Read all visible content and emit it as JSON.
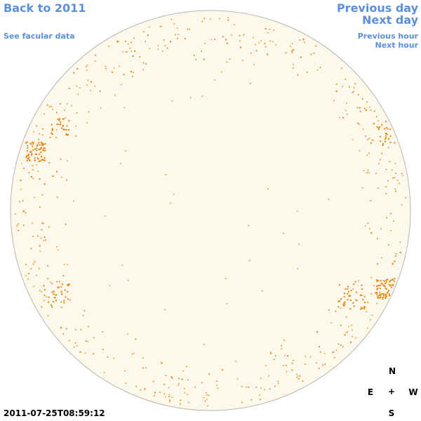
{
  "nav": {
    "back_year": "Back to 2011",
    "facular_data": "See facular data",
    "previous_day": "Previous day",
    "next_day": "Next day",
    "previous_hour": "Previous hour",
    "next_hour": "Next hour"
  },
  "compass": {
    "north": "N",
    "east": "E",
    "center": "+",
    "west": "W",
    "south": "S"
  },
  "timestamp": "2011-07-25T08:59:12",
  "colors": {
    "disk_fill": "#fdf8ec",
    "disk_edge": "#b9b5aa",
    "facula": "#e8820c",
    "link": "#5b8fd9"
  }
}
